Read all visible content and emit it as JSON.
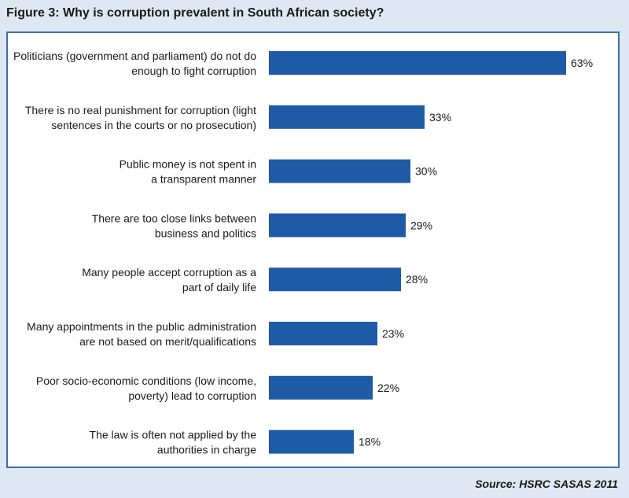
{
  "figure_title": "Figure 3: Why is corruption prevalent in South African society?",
  "source": "Source: HSRC SASAS 2011",
  "colors": {
    "bar": "#1f5aa6",
    "frame": "#3a6fb0",
    "background": "#dfe8f2"
  },
  "chart_data": {
    "type": "bar",
    "orientation": "horizontal",
    "categories": [
      [
        "Politicians (government and parliament) do not do",
        "enough to fight corruption"
      ],
      [
        "There is no real punishment for corruption (light",
        "sentences in the courts or no prosecution)"
      ],
      [
        "Public money is not spent in",
        "a transparent manner"
      ],
      [
        "There are too close links between",
        "business and politics"
      ],
      [
        "Many people accept corruption as a",
        "part of daily life"
      ],
      [
        "Many appointments in the public administration",
        "are not based on merit/qualifications"
      ],
      [
        "Poor socio-economic conditions (low income,",
        "poverty) lead to corruption"
      ],
      [
        "The law is often not applied by the",
        "authorities in charge"
      ]
    ],
    "values": [
      63,
      33,
      30,
      29,
      28,
      23,
      22,
      18
    ],
    "value_labels": [
      "63%",
      "33%",
      "30%",
      "29%",
      "28%",
      "23%",
      "22%",
      "18%"
    ],
    "unit": "%",
    "grid": false
  }
}
